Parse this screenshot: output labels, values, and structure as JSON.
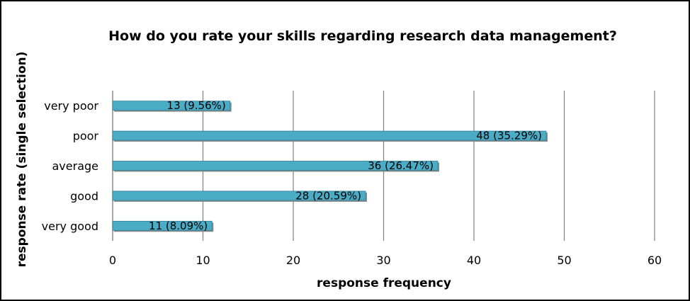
{
  "chart_data": {
    "type": "bar",
    "orientation": "horizontal",
    "title": "How do you rate your skills regarding research data management?",
    "xlabel": "response frequency",
    "ylabel": "response rate (single selection)",
    "categories": [
      "very poor",
      "poor",
      "average",
      "good",
      "very good"
    ],
    "values": [
      13,
      48,
      36,
      28,
      11
    ],
    "data_labels": [
      "13 (9.56%)",
      "48 (35.29%)",
      "36 (26.47%)",
      "28 (20.59%)",
      "11 (8.09%)"
    ],
    "xlim": [
      0,
      60
    ],
    "xticks": [
      "0",
      "10",
      "20",
      "30",
      "40",
      "50",
      "60"
    ],
    "grid": true,
    "legend": "none",
    "bar_color": "#4bacc6",
    "bar_edge_color": "#2c7f96"
  }
}
